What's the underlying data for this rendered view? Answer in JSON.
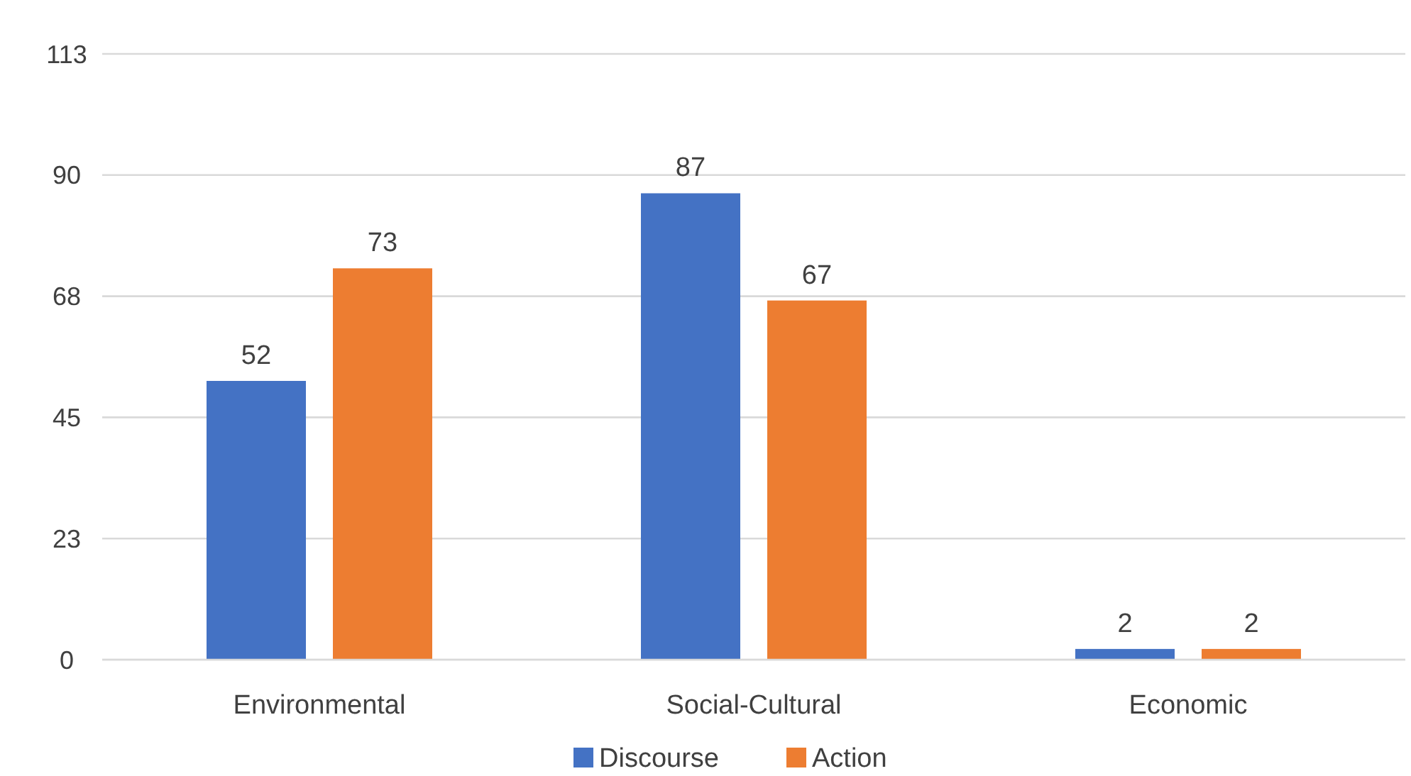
{
  "chart_data": {
    "type": "bar",
    "categories": [
      "Environmental",
      "Social-Cultural",
      "Economic"
    ],
    "series": [
      {
        "name": "Discourse",
        "color": "#4472c4",
        "values": [
          52,
          87,
          2
        ]
      },
      {
        "name": "Action",
        "color": "#ed7d31",
        "values": [
          73,
          67,
          2
        ]
      }
    ],
    "ylim": [
      0,
      113
    ],
    "yticks": [
      0,
      {
        "value": 22.6,
        "label": "23"
      },
      {
        "value": 45.2,
        "label": "45"
      },
      {
        "value": 67.8,
        "label": "68"
      },
      {
        "value": 90.4,
        "label": "90"
      },
      113
    ],
    "grid": "y",
    "legend": "bottom",
    "data_labels": true
  }
}
